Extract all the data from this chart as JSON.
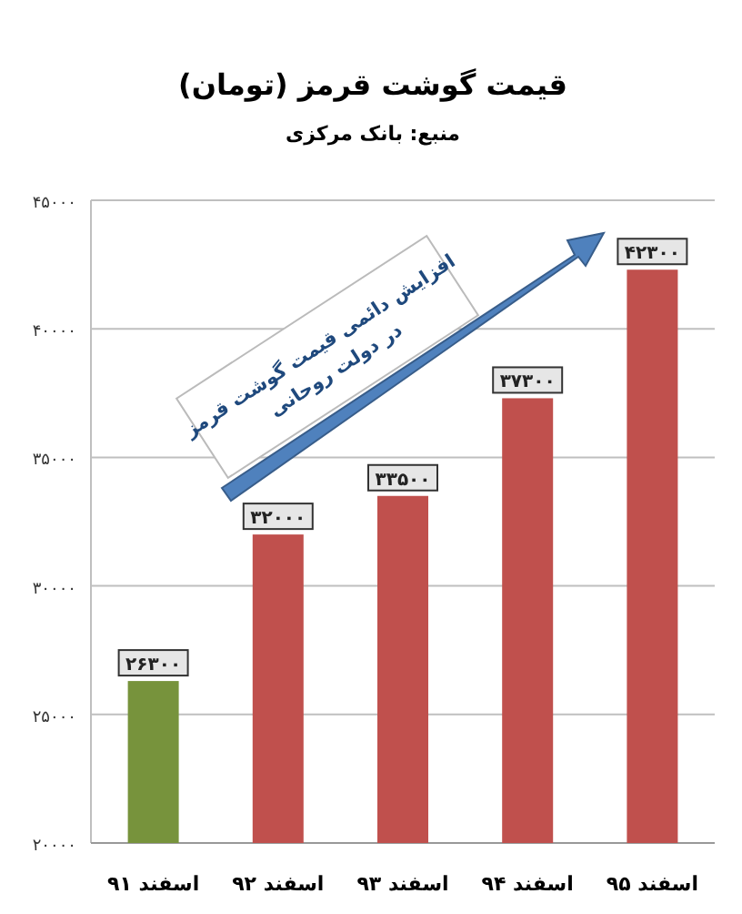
{
  "chart_data": {
    "type": "bar",
    "title": "قیمت گوشت قرمز (تومان)",
    "subtitle": "منبع: بانک مرکزی",
    "categories": [
      "اسفند ۹۱",
      "اسفند ۹۲",
      "اسفند ۹۳",
      "اسفند ۹۴",
      "اسفند ۹۵"
    ],
    "values": [
      26300,
      32000,
      33500,
      37300,
      42300
    ],
    "colors": [
      "#77933c",
      "#c0504d",
      "#c0504d",
      "#c0504d",
      "#c0504d"
    ],
    "value_labels": [
      "۲۶۳۰۰",
      "۳۲۰۰۰",
      "۳۳۵۰۰",
      "۳۷۳۰۰",
      "۴۲۳۰۰"
    ],
    "ylim": [
      20000,
      45000
    ],
    "yticks": [
      {
        "value": 20000,
        "label": "۲۰۰۰۰"
      },
      {
        "value": 25000,
        "label": "۲۵۰۰۰"
      },
      {
        "value": 30000,
        "label": "۳۰۰۰۰"
      },
      {
        "value": 35000,
        "label": "۳۵۰۰۰"
      },
      {
        "value": 40000,
        "label": "۴۰۰۰۰"
      },
      {
        "value": 45000,
        "label": "۴۵۰۰۰"
      }
    ],
    "grid": "y",
    "annotations": [
      "افزایش دائمی قیمت گوشت قرمز در دولت روحانی"
    ]
  }
}
